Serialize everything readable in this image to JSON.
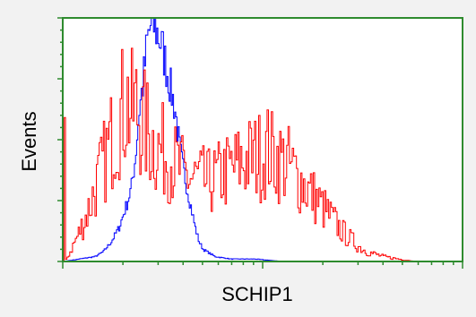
{
  "chart_data": {
    "type": "line",
    "title": "",
    "xlabel": "SCHIP1",
    "ylabel": "Events",
    "xlim": [
      0,
      100
    ],
    "ylim": [
      0,
      100
    ],
    "x_scale": "log-like",
    "grid": false,
    "legend": "none",
    "series": [
      {
        "color": "#0000ff",
        "points": [
          [
            0,
            0
          ],
          [
            4,
            1
          ],
          [
            8,
            2
          ],
          [
            10,
            4
          ],
          [
            12,
            8
          ],
          [
            14,
            14
          ],
          [
            16,
            24
          ],
          [
            17,
            30
          ],
          [
            18,
            42
          ],
          [
            19,
            62
          ],
          [
            20,
            74
          ],
          [
            21,
            90
          ],
          [
            22,
            98
          ],
          [
            23,
            96
          ],
          [
            24,
            92
          ],
          [
            25,
            86
          ],
          [
            26,
            78
          ],
          [
            27,
            70
          ],
          [
            28,
            62
          ],
          [
            29,
            48
          ],
          [
            30,
            38
          ],
          [
            31,
            30
          ],
          [
            32,
            22
          ],
          [
            33,
            14
          ],
          [
            34,
            8
          ],
          [
            35,
            5
          ],
          [
            36,
            4
          ],
          [
            38,
            2
          ],
          [
            42,
            1
          ],
          [
            48,
            1
          ],
          [
            55,
            0
          ],
          [
            60,
            0
          ]
        ]
      },
      {
        "color": "#ff0000",
        "points": [
          [
            0,
            0
          ],
          [
            0.2,
            95
          ],
          [
            0.5,
            0
          ],
          [
            2,
            5
          ],
          [
            4,
            12
          ],
          [
            6,
            20
          ],
          [
            8,
            30
          ],
          [
            10,
            40
          ],
          [
            12,
            50
          ],
          [
            14,
            60
          ],
          [
            16,
            66
          ],
          [
            17,
            60
          ],
          [
            18,
            64
          ],
          [
            20,
            56
          ],
          [
            22,
            50
          ],
          [
            24,
            46
          ],
          [
            26,
            44
          ],
          [
            28,
            40
          ],
          [
            30,
            36
          ],
          [
            32,
            34
          ],
          [
            34,
            34
          ],
          [
            36,
            32
          ],
          [
            38,
            34
          ],
          [
            40,
            36
          ],
          [
            42,
            38
          ],
          [
            44,
            40
          ],
          [
            46,
            42
          ],
          [
            48,
            43
          ],
          [
            50,
            44
          ],
          [
            51,
            46
          ],
          [
            52,
            44
          ],
          [
            54,
            42
          ],
          [
            56,
            40
          ],
          [
            58,
            36
          ],
          [
            60,
            32
          ],
          [
            62,
            28
          ],
          [
            64,
            24
          ],
          [
            66,
            20
          ],
          [
            68,
            16
          ],
          [
            70,
            12
          ],
          [
            72,
            9
          ],
          [
            74,
            6
          ],
          [
            76,
            4
          ],
          [
            78,
            3
          ],
          [
            80,
            2
          ],
          [
            84,
            1
          ],
          [
            88,
            0
          ],
          [
            100,
            0
          ]
        ]
      }
    ]
  }
}
